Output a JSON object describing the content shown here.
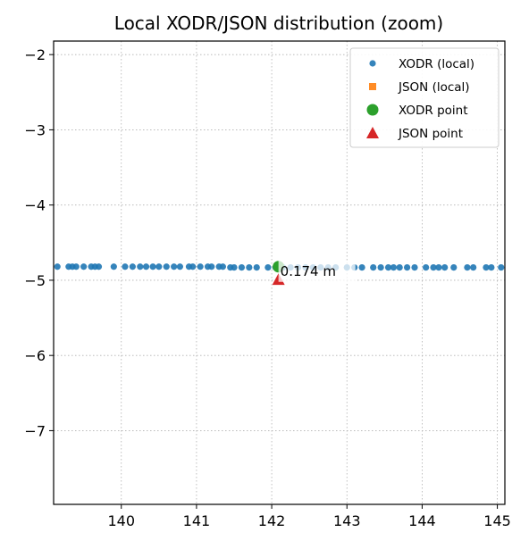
{
  "chart_data": {
    "type": "scatter",
    "title": "Local XODR/JSON distribution (zoom)",
    "xlabel": "",
    "ylabel": "",
    "xlim": [
      139.1,
      145.1
    ],
    "ylim": [
      -7.98,
      -1.82
    ],
    "x_ticks": [
      140,
      141,
      142,
      143,
      144,
      145
    ],
    "y_ticks": [
      -2,
      -3,
      -4,
      -5,
      -6,
      -7
    ],
    "x_tick_labels": [
      "140",
      "141",
      "142",
      "143",
      "144",
      "145"
    ],
    "y_tick_labels": [
      "−2",
      "−3",
      "−4",
      "−5",
      "−6",
      "−7"
    ],
    "grid": true,
    "legend_placement": "top-right",
    "series": [
      {
        "name": "XODR (local)",
        "marker": "circle",
        "color": "#1f77b4",
        "x": [
          139.15,
          139.3,
          139.35,
          139.4,
          139.5,
          139.6,
          139.65,
          139.7,
          139.9,
          140.05,
          140.15,
          140.25,
          140.33,
          140.42,
          140.5,
          140.6,
          140.7,
          140.78,
          140.9,
          140.95,
          141.05,
          141.15,
          141.2,
          141.3,
          141.35,
          141.45,
          141.5,
          141.6,
          141.7,
          141.8,
          141.95,
          142.05,
          142.15,
          142.25,
          142.35,
          142.45,
          142.55,
          142.65,
          142.75,
          142.85,
          143.0,
          143.1,
          143.2,
          143.35,
          143.45,
          143.55,
          143.62,
          143.7,
          143.8,
          143.9,
          144.05,
          144.15,
          144.22,
          144.3,
          144.42,
          144.6,
          144.68,
          144.85,
          144.92,
          145.05
        ],
        "y": [
          -4.82,
          -4.82,
          -4.82,
          -4.82,
          -4.82,
          -4.82,
          -4.82,
          -4.82,
          -4.82,
          -4.82,
          -4.82,
          -4.82,
          -4.82,
          -4.82,
          -4.82,
          -4.82,
          -4.82,
          -4.82,
          -4.82,
          -4.82,
          -4.82,
          -4.82,
          -4.82,
          -4.82,
          -4.82,
          -4.83,
          -4.83,
          -4.83,
          -4.83,
          -4.83,
          -4.83,
          -4.83,
          -4.83,
          -4.83,
          -4.83,
          -4.83,
          -4.83,
          -4.83,
          -4.83,
          -4.83,
          -4.83,
          -4.83,
          -4.83,
          -4.83,
          -4.83,
          -4.83,
          -4.83,
          -4.83,
          -4.83,
          -4.83,
          -4.83,
          -4.83,
          -4.83,
          -4.83,
          -4.83,
          -4.83,
          -4.83,
          -4.83,
          -4.83,
          -4.83
        ]
      },
      {
        "name": "JSON (local)",
        "marker": "square",
        "color": "#ff7f0e",
        "x": [],
        "y": []
      },
      {
        "name": "XODR point",
        "marker": "circle-large",
        "color": "#2ca02c",
        "x": [
          142.09
        ],
        "y": [
          -4.82
        ]
      },
      {
        "name": "JSON point",
        "marker": "triangle",
        "color": "#d62728",
        "x": [
          142.09
        ],
        "y": [
          -4.99
        ]
      }
    ],
    "annotations": [
      {
        "text": "0.174 m",
        "x": 142.09,
        "y": -4.82
      }
    ]
  }
}
